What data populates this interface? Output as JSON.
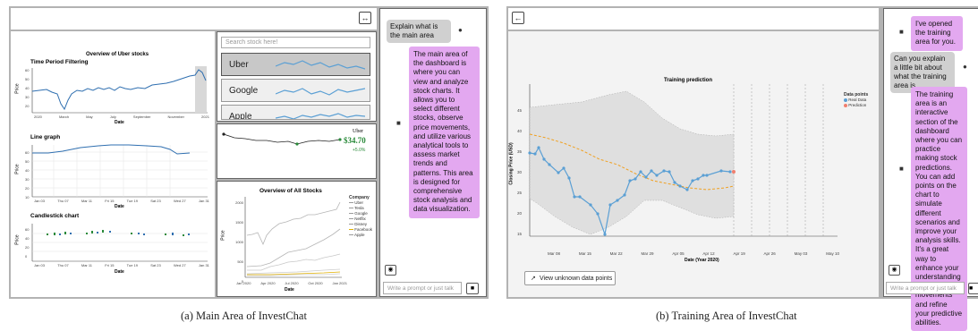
{
  "panel_a": {
    "caption": "(a)  Main Area of InvestChat",
    "expand_icon": "expand-horizontal-icon",
    "overview_chart": {
      "title": "Overview of Uber stocks",
      "subtitle": "Time Period Filtering",
      "ylabel": "Price",
      "xlabel": "Date",
      "yticks": [
        "60",
        "50",
        "40",
        "30",
        "20"
      ],
      "xticks": [
        "2020",
        "March",
        "May",
        "July",
        "September",
        "November",
        "2021"
      ]
    },
    "line_graph": {
      "title": "Line graph",
      "ylabel": "Price",
      "xlabel": "Date",
      "yticks": [
        "60",
        "50",
        "40",
        "30",
        "20",
        "10",
        "0"
      ],
      "xticks": [
        "Jan 03",
        "Thu 07",
        "Mar 11",
        "Fri 15",
        "Tue 19",
        "Sat 23",
        "Wed 27",
        "Jan 31"
      ]
    },
    "candlestick": {
      "title": "Candlestick chart",
      "ylabel": "Price",
      "xlabel": "Date",
      "yticks": [
        "60",
        "40",
        "20",
        "0"
      ],
      "xticks": [
        "Jan 03",
        "Thu 07",
        "Mar 11",
        "Fri 15",
        "Tue 19",
        "Sat 23",
        "Wed 27",
        "Jan 31"
      ]
    },
    "search": {
      "placeholder": "Search stock here!"
    },
    "stocks": [
      {
        "name": "Uber"
      },
      {
        "name": "Google"
      },
      {
        "name": "Apple"
      }
    ],
    "ticker": {
      "name": "Uber",
      "price": "$34.70",
      "change": "+5.0%"
    },
    "all_stocks": {
      "title": "Overview of All Stocks",
      "ylabel": "Price",
      "xlabel": "Date",
      "yticks": [
        "2000",
        "1500",
        "1000",
        "500",
        "0"
      ],
      "xticks": [
        "Jan 2020",
        "Apr 2020",
        "Jul 2020",
        "Oct 2020",
        "Jan 2021"
      ],
      "legend_title": "Company",
      "legend": [
        {
          "name": "Uber",
          "color": "#9a9a9a"
        },
        {
          "name": "Tesla",
          "color": "#9a9a9a"
        },
        {
          "name": "Google",
          "color": "#9a9a9a"
        },
        {
          "name": "Netflix",
          "color": "#9a9a9a"
        },
        {
          "name": "Disney",
          "color": "#9a9a9a"
        },
        {
          "name": "Facebook",
          "color": "#e0b000"
        },
        {
          "name": "Apple",
          "color": "#9a9a9a"
        }
      ]
    },
    "chat": {
      "user_msg": "Explain what is the main area",
      "bot_msg": "The main area of the dashboard is where you can view and analyze stock charts. It allows you to select different stocks, observe price movements, and utilize various analytical tools to assess market trends and patterns. This area is designed for comprehensive stock analysis and data visualization.",
      "input_placeholder": "Write a prompt or just talk",
      "camera_icon": "camera-icon",
      "bot_icon": "robot-icon",
      "user_icon": "user-icon"
    }
  },
  "panel_b": {
    "caption": "(b)  Training Area of InvestChat",
    "back_icon": "arrow-left-icon",
    "chart": {
      "title": "Training prediction",
      "ylabel": "Closing Price (USD)",
      "xlabel": "Date (Year 2020)",
      "yticks": [
        "45",
        "40",
        "35",
        "30",
        "25",
        "20",
        "15"
      ],
      "xticks": [
        "Mar 08",
        "Mar 15",
        "Mar 22",
        "Mar 29",
        "Apr 05",
        "Apr 12",
        "Apr 19",
        "Apr 26",
        "May 03",
        "May 10"
      ],
      "legend_title": "Data points",
      "legend": [
        {
          "name": "Real Data",
          "color": "#5a9fd4"
        },
        {
          "name": "Prediction",
          "color": "#f07f6e"
        }
      ]
    },
    "unknown_button": "View unknown data points",
    "chat": {
      "bot_msg_1": "I've opened the training area for you.",
      "user_msg": "Can you explain a little bit about what the training area is",
      "bot_msg_2": "The training area is an interactive section of the dashboard where you can practice making stock predictions. You can add points on the chart to simulate different scenarios and improve your analysis skills. It's a great way to enhance your understanding of stock movements and refine your predictive abilities.",
      "input_placeholder": "Write a prompt or just talk"
    }
  },
  "chart_data": {
    "type": "line",
    "title": "Training prediction",
    "xlabel": "Date (Year 2020)",
    "ylabel": "Closing Price (USD)",
    "ylim": [
      13,
      48
    ],
    "series": [
      {
        "name": "Real Data",
        "x": [
          "Mar 02",
          "Mar 03",
          "Mar 04",
          "Mar 05",
          "Mar 06",
          "Mar 09",
          "Mar 10",
          "Mar 11",
          "Mar 12",
          "Mar 13",
          "Mar 16",
          "Mar 17",
          "Mar 18",
          "Mar 19",
          "Mar 20",
          "Mar 23",
          "Mar 24",
          "Mar 25",
          "Mar 26",
          "Mar 27",
          "Mar 30",
          "Mar 31",
          "Apr 01",
          "Apr 02",
          "Apr 03",
          "Apr 06",
          "Apr 07",
          "Apr 08",
          "Apr 09",
          "Apr 13",
          "Apr 14"
        ],
        "values": [
          33,
          33,
          34.5,
          32,
          31,
          28.5,
          29,
          26.5,
          22.5,
          22.5,
          20,
          15,
          21,
          22,
          26,
          26.5,
          28,
          26.5,
          28,
          27,
          28,
          26,
          25,
          23,
          24.5,
          26.5,
          27,
          26.5,
          27,
          28,
          28
        ]
      },
      {
        "name": "Prediction",
        "x": [
          "Apr 14"
        ],
        "values": [
          28
        ]
      }
    ],
    "legend_title": "Data points",
    "legend": "top-right"
  }
}
